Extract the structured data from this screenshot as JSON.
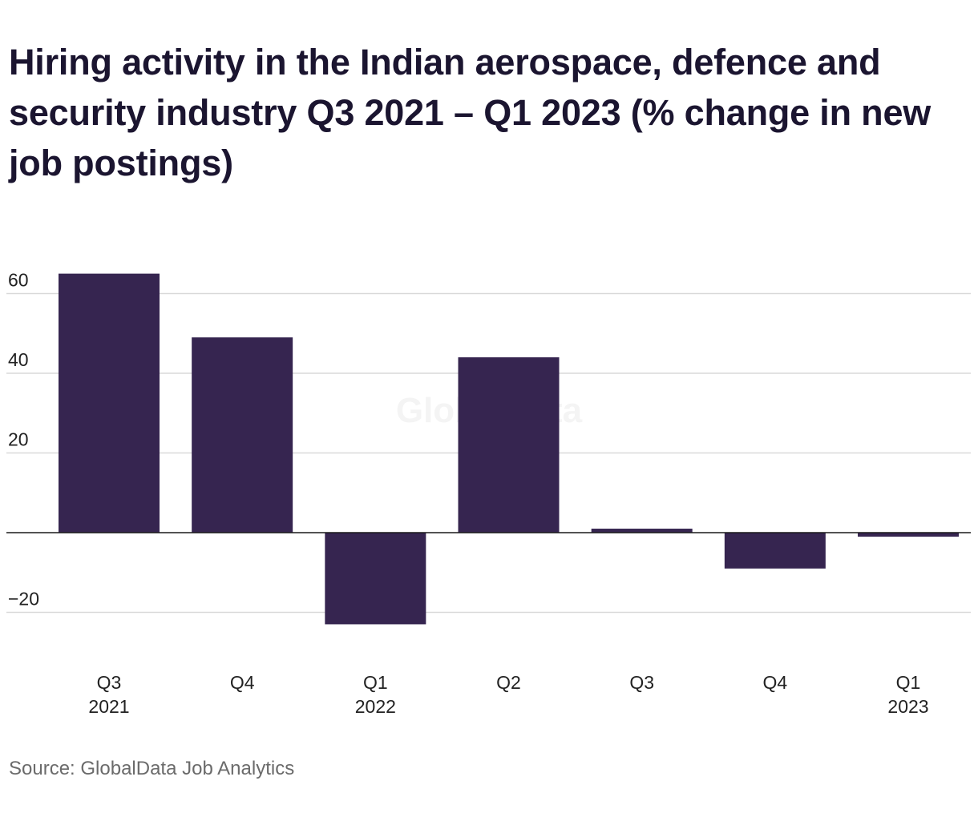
{
  "chart_data": {
    "type": "bar",
    "title": "Hiring activity in the Indian aerospace, defence and security industry Q3 2021 – Q1 2023 (% change in new job postings)",
    "source": "Source: GlobalData Job Analytics",
    "watermark": "GlobalData",
    "categories": [
      [
        "Q3",
        "2021"
      ],
      [
        "Q4"
      ],
      [
        "Q1",
        "2022"
      ],
      [
        "Q2"
      ],
      [
        "Q3"
      ],
      [
        "Q4"
      ],
      [
        "Q1",
        "2023"
      ]
    ],
    "values": [
      65,
      49,
      -23,
      44,
      1,
      -9,
      -1
    ],
    "ylim": [
      -30,
      66
    ],
    "yticks": [
      60,
      40,
      20,
      0,
      -20
    ],
    "ytick_labels": [
      "60",
      "40",
      "20",
      "",
      "−20"
    ],
    "grid": true,
    "colors": {
      "bar": "#362550",
      "grid": "#d9d9d9",
      "zero_line": "#1a1a1a"
    }
  }
}
